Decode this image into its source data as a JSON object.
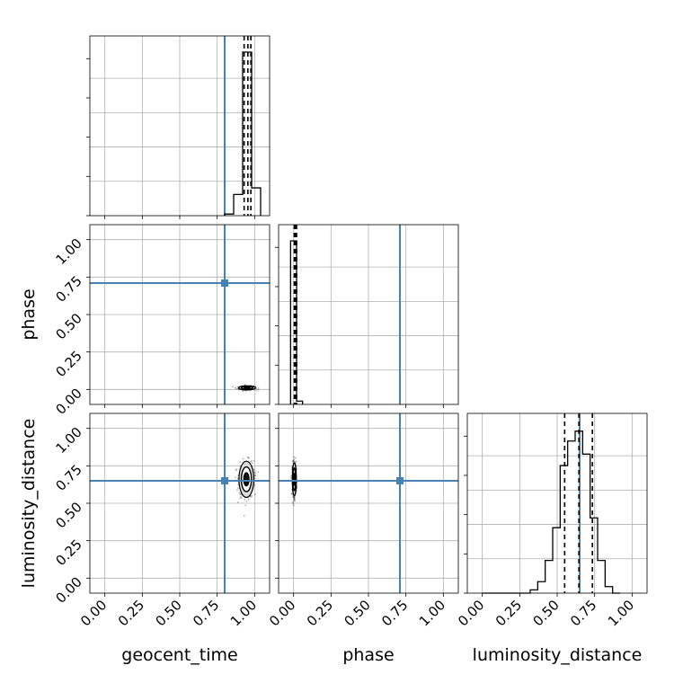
{
  "chart_data": {
    "type": "corner",
    "title": "",
    "parameters": [
      "geocent_time",
      "phase",
      "luminosity_distance"
    ],
    "truths": {
      "geocent_time": 0.8,
      "phase": 0.71,
      "luminosity_distance": 0.65
    },
    "colors": {
      "truth": "#4682b4",
      "hist": "#000000",
      "grid": "#b0b0b0",
      "density": "#222222"
    },
    "grid": true,
    "axis_range": [
      -0.1,
      1.1
    ],
    "ticks": [
      {
        "value": 0.0,
        "label": "0.00"
      },
      {
        "value": 0.25,
        "label": "0.25"
      },
      {
        "value": 0.5,
        "label": "0.50"
      },
      {
        "value": 0.75,
        "label": "0.75"
      },
      {
        "value": 1.0,
        "label": "1.00"
      }
    ],
    "xlabels": [
      "geocent_time",
      "phase",
      "luminosity_distance"
    ],
    "ylabels": [
      "phase",
      "luminosity_distance"
    ],
    "marginals": [
      {
        "name": "geocent_time",
        "bin_edges": [
          0.8,
          0.86,
          0.92,
          0.98,
          1.04
        ],
        "counts": [
          0.01,
          0.13,
          1.0,
          0.17
        ],
        "quantiles": [
          0.93,
          0.955,
          0.975
        ]
      },
      {
        "name": "phase",
        "bin_edges": [
          -0.02,
          0.02,
          0.06
        ],
        "counts": [
          1.0,
          0.02
        ],
        "quantiles": [
          0.005,
          0.012,
          0.02
        ]
      },
      {
        "name": "luminosity_distance",
        "bin_edges": [
          0.0,
          0.32,
          0.37,
          0.42,
          0.47,
          0.52,
          0.57,
          0.62,
          0.67,
          0.72,
          0.77,
          0.82,
          0.87,
          0.92
        ],
        "counts": [
          0,
          0.02,
          0.07,
          0.2,
          0.4,
          0.78,
          0.93,
          0.99,
          0.85,
          0.46,
          0.2,
          0.04,
          0
        ],
        "quantiles": [
          0.55,
          0.645,
          0.735
        ]
      }
    ],
    "joints": [
      {
        "x": "geocent_time",
        "y": "phase",
        "x_center": 0.95,
        "y_center": 0.01,
        "x_spread": 0.05,
        "y_spread": 0.012
      },
      {
        "x": "geocent_time",
        "y": "luminosity_distance",
        "x_center": 0.945,
        "y_center": 0.66,
        "x_spread": 0.045,
        "y_spread": 0.11
      },
      {
        "x": "phase",
        "y": "luminosity_distance",
        "x_center": 0.005,
        "y_center": 0.66,
        "x_spread": 0.012,
        "y_spread": 0.1
      }
    ]
  }
}
